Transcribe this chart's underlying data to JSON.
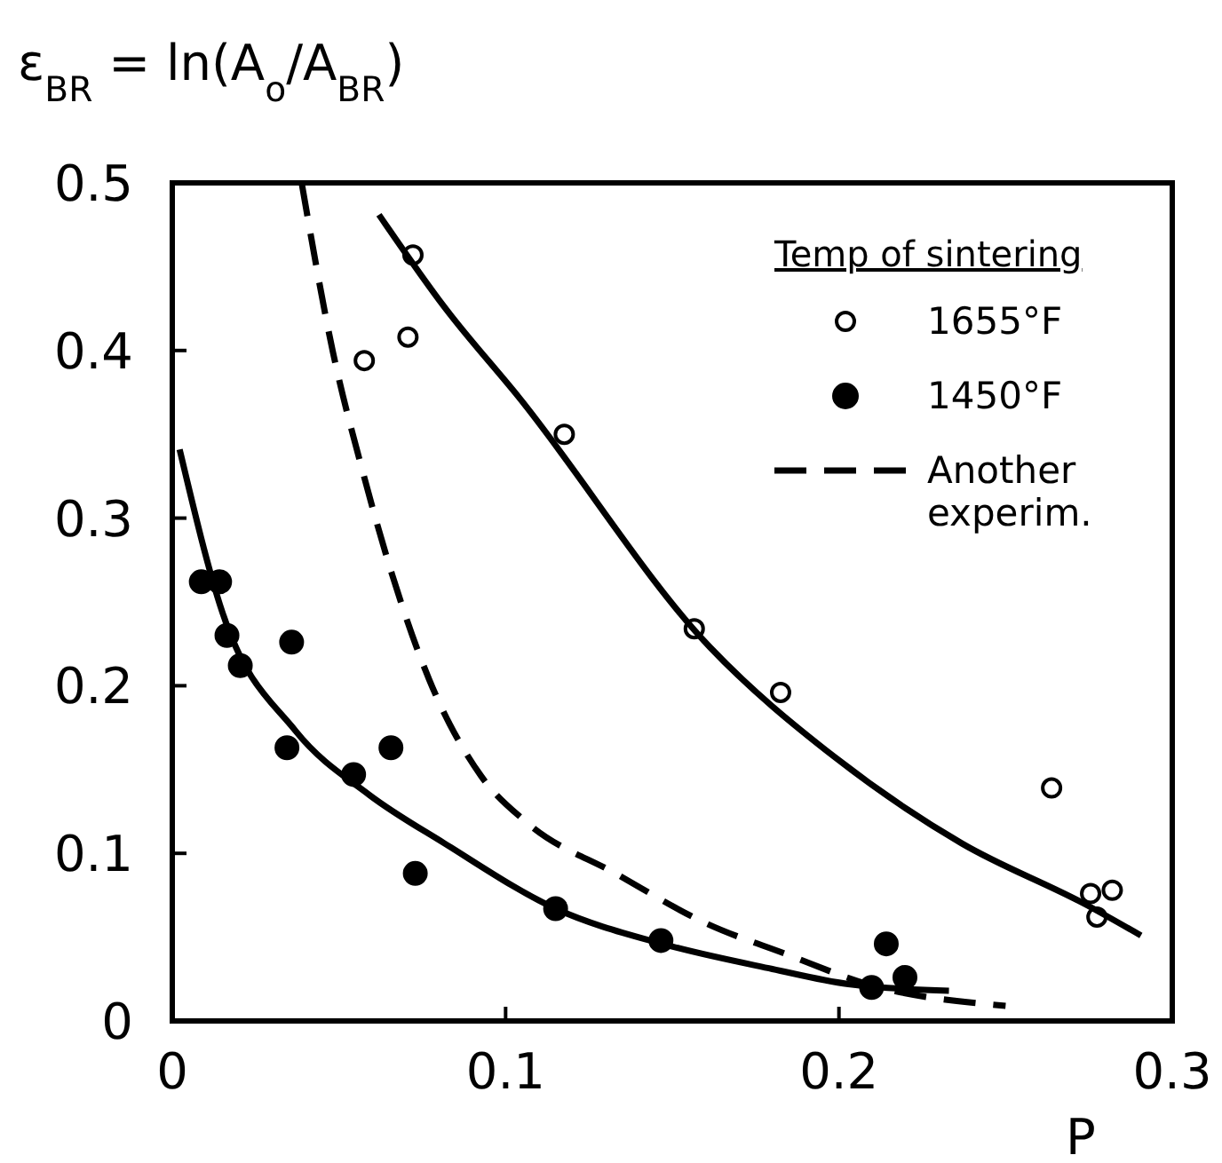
{
  "chart_data": {
    "type": "scatter",
    "ylabel": "ε$_{BR}$ = ln(A$_{o}$/A$_{BR}$)",
    "xlabel": "P",
    "legend_title": "Temp of sintering",
    "legend": "top right",
    "grid": false,
    "xlim": [
      0,
      0.3
    ],
    "xticks": [
      0,
      0.1,
      0.2,
      0.3
    ],
    "ylim": [
      0,
      0.5
    ],
    "yticks": [
      0,
      0.1,
      0.2,
      0.3,
      0.4,
      0.5
    ],
    "series": [
      {
        "name": "1655°F",
        "marker": "circle-open",
        "color": "#000000",
        "x": [
          0.0722,
          0.0707,
          0.0576,
          0.1176,
          0.1566,
          0.1825,
          0.2638,
          0.2755,
          0.282,
          0.2774
        ],
        "values": [
          0.457,
          0.408,
          0.394,
          0.35,
          0.234,
          0.196,
          0.139,
          0.076,
          0.078,
          0.062
        ]
      },
      {
        "name": "1450°F",
        "marker": "circle",
        "color": "#000000",
        "x": [
          0.0087,
          0.0142,
          0.0164,
          0.0204,
          0.0358,
          0.0344,
          0.0544,
          0.0656,
          0.0729,
          0.115,
          0.1466,
          0.2142,
          0.2098,
          0.2198
        ],
        "values": [
          0.262,
          0.262,
          0.23,
          0.212,
          0.226,
          0.163,
          0.147,
          0.163,
          0.088,
          0.067,
          0.048,
          0.046,
          0.02,
          0.026
        ]
      },
      {
        "name": "Another experim.",
        "type": "line",
        "line_style": "dashed",
        "color": "#000000",
        "x": [
          0.0389,
          0.0482,
          0.0571,
          0.066,
          0.077,
          0.0927,
          0.1066,
          0.133,
          0.1604,
          0.184,
          0.2085,
          0.25
        ],
        "values": [
          0.499,
          0.399,
          0.328,
          0.266,
          0.204,
          0.146,
          0.118,
          0.088,
          0.058,
          0.04,
          0.022,
          0.009
        ]
      },
      {
        "type": "line",
        "line_style": "solid",
        "color": "#000000",
        "x": [
          0.0022,
          0.015,
          0.037,
          0.059,
          0.0816,
          0.115,
          0.147,
          0.18,
          0.2028,
          0.233
        ],
        "values": [
          0.341,
          0.244,
          0.173,
          0.135,
          0.106,
          0.067,
          0.046,
          0.031,
          0.022,
          0.018
        ]
      },
      {
        "type": "line",
        "line_style": "solid",
        "color": "#000000",
        "x": [
          0.062,
          0.0816,
          0.104,
          0.1613,
          0.199,
          0.2368,
          0.2745,
          0.2906
        ],
        "values": [
          0.481,
          0.426,
          0.372,
          0.223,
          0.157,
          0.106,
          0.069,
          0.051
        ]
      }
    ]
  }
}
